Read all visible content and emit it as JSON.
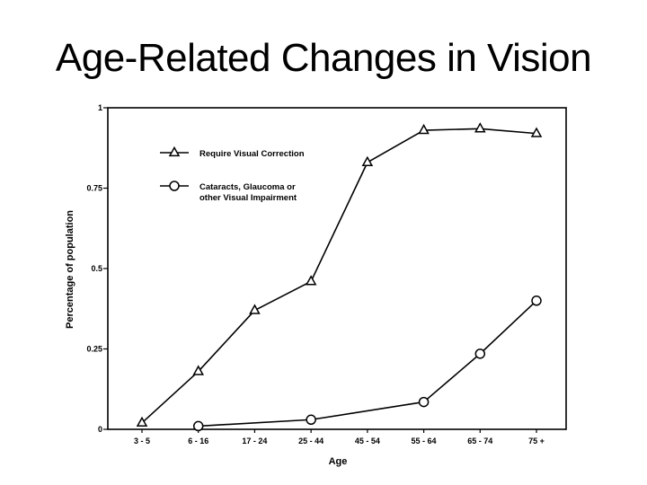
{
  "slide": {
    "title": "Age-Related Changes in Vision"
  },
  "chart_data": {
    "type": "line",
    "title": "",
    "xlabel": "Age",
    "ylabel": "Percentage of population",
    "categories": [
      "3 - 5",
      "6 - 16",
      "17 - 24",
      "25 - 44",
      "45 - 54",
      "55 - 64",
      "65 - 74",
      "75 +"
    ],
    "ylim": [
      0,
      1
    ],
    "yticks": [
      {
        "value": 0,
        "label": "0"
      },
      {
        "value": 0.25,
        "label": "0.25"
      },
      {
        "value": 0.5,
        "label": "0.5"
      },
      {
        "value": 0.75,
        "label": "0.75"
      },
      {
        "value": 1,
        "label": "1"
      }
    ],
    "grid": false,
    "legend_position": "top-left",
    "series": [
      {
        "name": "Require Visual Correction",
        "marker": "triangle",
        "values": [
          0.02,
          0.18,
          0.37,
          0.46,
          0.83,
          0.93,
          0.935,
          0.92
        ]
      },
      {
        "name_lines": [
          "Cataracts, Glaucoma or",
          "other Visual Impairment"
        ],
        "marker": "circle",
        "values": [
          null,
          0.01,
          null,
          0.03,
          null,
          0.085,
          0.235,
          0.4
        ]
      }
    ]
  }
}
